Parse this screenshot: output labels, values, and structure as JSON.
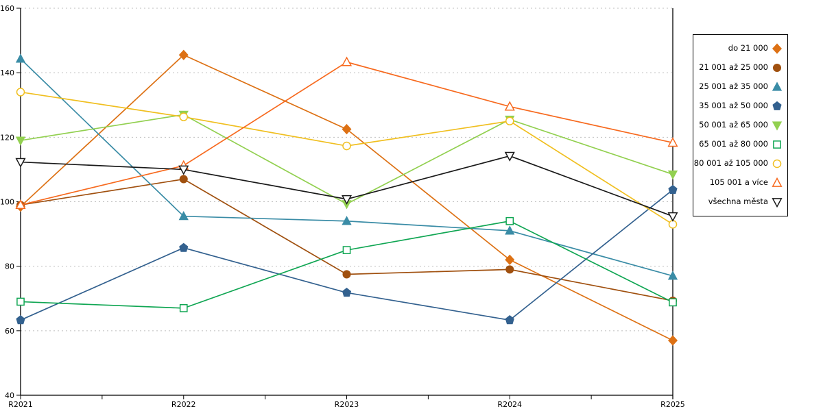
{
  "chart_data": {
    "type": "line",
    "title": "",
    "xlabel": "",
    "ylabel": "",
    "categories": [
      "R2021",
      "R2022",
      "R2023",
      "R2024",
      "R2025"
    ],
    "ylim": [
      40,
      160
    ],
    "ytick_step": 20,
    "grid": "horizontal-dashed",
    "grid_color": "#bdbdbd",
    "axis_color": "#000000",
    "legend_position": "right-outside",
    "series": [
      {
        "label": "do 21 000",
        "marker": "diamond",
        "marker_fill": "filled",
        "color": "#DD7114",
        "values": [
          98.5,
          145.5,
          122.5,
          82.0,
          57.0
        ]
      },
      {
        "label": "21 001 až 25 000",
        "marker": "circle",
        "marker_fill": "filled",
        "color": "#A0500F",
        "values": [
          99.0,
          107.0,
          77.5,
          79.0,
          69.3
        ]
      },
      {
        "label": "25 001 až 35 000",
        "marker": "triangle-up",
        "marker_fill": "filled",
        "color": "#3A8CA6",
        "values": [
          144.3,
          95.5,
          94.0,
          91.0,
          77.0
        ]
      },
      {
        "label": "35 001 až 50 000",
        "marker": "pentagon",
        "marker_fill": "filled",
        "color": "#33618F",
        "values": [
          63.3,
          85.7,
          71.8,
          63.3,
          103.7
        ]
      },
      {
        "label": "50 001 až 65 000",
        "marker": "triangle-down",
        "marker_fill": "filled",
        "color": "#92D050",
        "values": [
          119.0,
          127.0,
          99.3,
          125.5,
          108.5
        ]
      },
      {
        "label": "65 001 až 80 000",
        "marker": "square",
        "marker_fill": "open",
        "color": "#10A653",
        "values": [
          69.0,
          67.0,
          85.0,
          94.0,
          68.8
        ]
      },
      {
        "label": "80 001 až 105 000",
        "marker": "circle",
        "marker_fill": "open",
        "color": "#F0BF20",
        "values": [
          134.0,
          126.3,
          117.3,
          125.0,
          93.0
        ]
      },
      {
        "label": "105 001 a více",
        "marker": "triangle-up",
        "marker_fill": "open",
        "color": "#F76A1F",
        "values": [
          99.0,
          111.2,
          143.3,
          129.5,
          118.3
        ]
      },
      {
        "label": "všechna města",
        "marker": "triangle-down",
        "marker_fill": "open",
        "color": "#1A1A1A",
        "values": [
          112.3,
          110.0,
          100.8,
          114.2,
          95.5
        ]
      }
    ]
  }
}
